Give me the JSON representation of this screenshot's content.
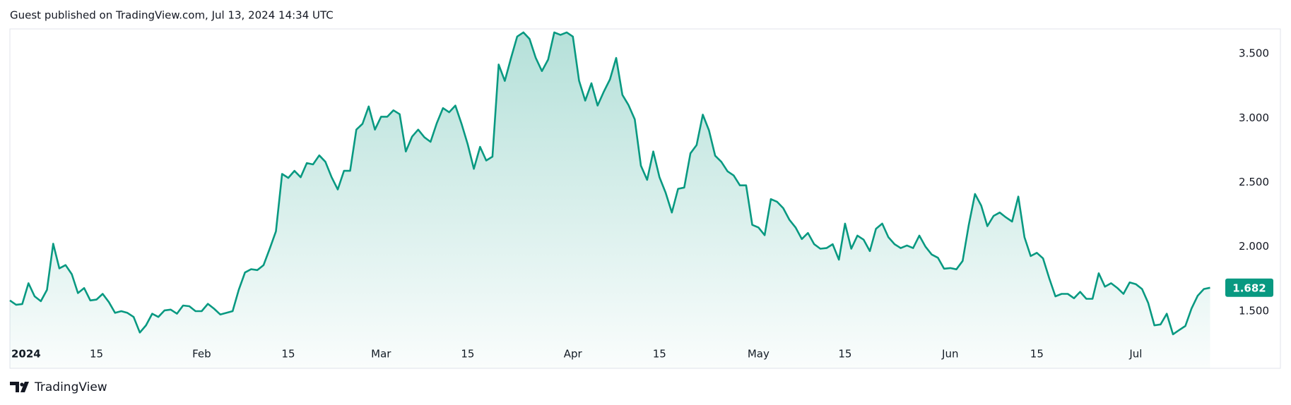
{
  "header": {
    "text": "Guest published on TradingView.com, Jul 13, 2024 14:34 UTC"
  },
  "footer": {
    "brand": "TradingView"
  },
  "chart_data": {
    "type": "area",
    "series": [
      {
        "color": "#089981",
        "values": [
          1.583,
          1.55,
          1.555,
          1.717,
          1.615,
          1.577,
          1.666,
          2.024,
          1.832,
          1.858,
          1.787,
          1.64,
          1.679,
          1.583,
          1.59,
          1.634,
          1.57,
          1.487,
          1.5,
          1.487,
          1.455,
          1.334,
          1.39,
          1.48,
          1.455,
          1.506,
          1.512,
          1.48,
          1.544,
          1.538,
          1.5,
          1.5,
          1.557,
          1.519,
          1.474,
          1.487,
          1.5,
          1.666,
          1.8,
          1.826,
          1.819,
          1.858,
          1.985,
          2.12,
          2.566,
          2.535,
          2.59,
          2.54,
          2.65,
          2.64,
          2.71,
          2.66,
          2.54,
          2.445,
          2.59,
          2.59,
          2.91,
          2.955,
          3.09,
          2.91,
          3.01,
          3.01,
          3.06,
          3.03,
          2.74,
          2.855,
          2.91,
          2.85,
          2.815,
          2.96,
          3.077,
          3.045,
          3.097,
          2.956,
          2.796,
          2.605,
          2.776,
          2.67,
          2.7,
          3.416,
          3.288,
          3.467,
          3.633,
          3.665,
          3.614,
          3.467,
          3.365,
          3.454,
          3.665,
          3.646,
          3.665,
          3.633,
          3.29,
          3.135,
          3.27,
          3.097,
          3.205,
          3.3,
          3.467,
          3.18,
          3.1,
          2.99,
          2.63,
          2.52,
          2.74,
          2.54,
          2.42,
          2.266,
          2.45,
          2.46,
          2.726,
          2.79,
          3.026,
          2.905,
          2.707,
          2.66,
          2.586,
          2.554,
          2.477,
          2.477,
          2.17,
          2.15,
          2.09,
          2.37,
          2.35,
          2.3,
          2.21,
          2.15,
          2.06,
          2.107,
          2.02,
          1.985,
          1.99,
          2.02,
          1.9,
          2.18,
          1.985,
          2.087,
          2.055,
          1.966,
          2.14,
          2.18,
          2.075,
          2.02,
          1.99,
          2.01,
          1.99,
          2.087,
          2.0,
          1.94,
          1.915,
          1.83,
          1.835,
          1.825,
          1.89,
          2.17,
          2.41,
          2.32,
          2.16,
          2.24,
          2.266,
          2.228,
          2.196,
          2.39,
          2.075,
          1.928,
          1.953,
          1.91,
          1.755,
          1.615,
          1.634,
          1.634,
          1.6,
          1.65,
          1.596,
          1.596,
          1.794,
          1.69,
          1.717,
          1.68,
          1.634,
          1.723,
          1.71,
          1.672,
          1.564,
          1.39,
          1.397,
          1.48,
          1.32,
          1.353,
          1.385,
          1.52,
          1.62,
          1.672,
          1.682
        ]
      }
    ],
    "x": [
      "2024-01-01",
      "2024-01-02",
      "2024-01-03",
      "2024-01-04",
      "2024-01-05",
      "2024-01-06",
      "2024-01-07",
      "2024-01-08",
      "2024-01-09",
      "2024-01-10",
      "2024-01-11",
      "2024-01-12",
      "2024-01-13",
      "2024-01-14",
      "2024-01-15",
      "2024-01-16",
      "2024-01-17",
      "2024-01-18",
      "2024-01-19",
      "2024-01-20",
      "2024-01-21",
      "2024-01-22",
      "2024-01-23",
      "2024-01-24",
      "2024-01-25",
      "2024-01-26",
      "2024-01-27",
      "2024-01-28",
      "2024-01-29",
      "2024-01-30",
      "2024-01-31",
      "2024-02-01",
      "2024-02-02",
      "2024-02-03",
      "2024-02-04",
      "2024-02-05",
      "2024-02-06",
      "2024-02-07",
      "2024-02-08",
      "2024-02-09",
      "2024-02-10",
      "2024-02-11",
      "2024-02-12",
      "2024-02-13",
      "2024-02-14",
      "2024-02-15",
      "2024-02-16",
      "2024-02-17",
      "2024-02-18",
      "2024-02-19",
      "2024-02-20",
      "2024-02-21",
      "2024-02-22",
      "2024-02-23",
      "2024-02-24",
      "2024-02-25",
      "2024-02-26",
      "2024-02-27",
      "2024-02-28",
      "2024-02-29",
      "2024-03-01",
      "2024-03-02",
      "2024-03-03",
      "2024-03-04",
      "2024-03-05",
      "2024-03-06",
      "2024-03-07",
      "2024-03-08",
      "2024-03-09",
      "2024-03-10",
      "2024-03-11",
      "2024-03-12",
      "2024-03-13",
      "2024-03-14",
      "2024-03-15",
      "2024-03-16",
      "2024-03-17",
      "2024-03-18",
      "2024-03-19",
      "2024-03-20",
      "2024-03-21",
      "2024-03-22",
      "2024-03-23",
      "2024-03-24",
      "2024-03-25",
      "2024-03-26",
      "2024-03-27",
      "2024-03-28",
      "2024-03-29",
      "2024-03-30",
      "2024-03-31",
      "2024-04-01",
      "2024-04-02",
      "2024-04-03",
      "2024-04-04",
      "2024-04-05",
      "2024-04-06",
      "2024-04-07",
      "2024-04-08",
      "2024-04-09",
      "2024-04-10",
      "2024-04-11",
      "2024-04-12",
      "2024-04-13",
      "2024-04-14",
      "2024-04-15",
      "2024-04-16",
      "2024-04-17",
      "2024-04-18",
      "2024-04-19",
      "2024-04-20",
      "2024-04-21",
      "2024-04-22",
      "2024-04-23",
      "2024-04-24",
      "2024-04-25",
      "2024-04-26",
      "2024-04-27",
      "2024-04-28",
      "2024-04-29",
      "2024-04-30",
      "2024-05-01",
      "2024-05-02",
      "2024-05-03",
      "2024-05-04",
      "2024-05-05",
      "2024-05-06",
      "2024-05-07",
      "2024-05-08",
      "2024-05-09",
      "2024-05-10",
      "2024-05-11",
      "2024-05-12",
      "2024-05-13",
      "2024-05-14",
      "2024-05-15",
      "2024-05-16",
      "2024-05-17",
      "2024-05-18",
      "2024-05-19",
      "2024-05-20",
      "2024-05-21",
      "2024-05-22",
      "2024-05-23",
      "2024-05-24",
      "2024-05-25",
      "2024-05-26",
      "2024-05-27",
      "2024-05-28",
      "2024-05-29",
      "2024-05-30",
      "2024-05-31",
      "2024-06-01",
      "2024-06-02",
      "2024-06-03",
      "2024-06-04",
      "2024-06-05",
      "2024-06-06",
      "2024-06-07",
      "2024-06-08",
      "2024-06-09",
      "2024-06-10",
      "2024-06-11",
      "2024-06-12",
      "2024-06-13",
      "2024-06-14",
      "2024-06-15",
      "2024-06-16",
      "2024-06-17",
      "2024-06-18",
      "2024-06-19",
      "2024-06-20",
      "2024-06-21",
      "2024-06-22",
      "2024-06-23",
      "2024-06-24",
      "2024-06-25",
      "2024-06-26",
      "2024-06-27",
      "2024-06-28",
      "2024-06-29",
      "2024-06-30",
      "2024-07-01",
      "2024-07-02",
      "2024-07-03",
      "2024-07-04",
      "2024-07-05",
      "2024-07-06",
      "2024-07-07",
      "2024-07-08",
      "2024-07-09",
      "2024-07-10",
      "2024-07-11",
      "2024-07-12",
      "2024-07-13"
    ],
    "xlim": [
      "2024-01-01",
      "2024-07-15"
    ],
    "xticks": [
      {
        "value": "2024-01-01",
        "label": "2024"
      },
      {
        "value": "2024-01-15",
        "label": "15"
      },
      {
        "value": "2024-02-01",
        "label": "Feb"
      },
      {
        "value": "2024-02-15",
        "label": "15"
      },
      {
        "value": "2024-03-01",
        "label": "Mar"
      },
      {
        "value": "2024-03-15",
        "label": "15"
      },
      {
        "value": "2024-04-01",
        "label": "Apr"
      },
      {
        "value": "2024-04-15",
        "label": "15"
      },
      {
        "value": "2024-05-01",
        "label": "May"
      },
      {
        "value": "2024-05-15",
        "label": "15"
      },
      {
        "value": "2024-06-01",
        "label": "Jun"
      },
      {
        "value": "2024-06-15",
        "label": "15"
      },
      {
        "value": "2024-07-01",
        "label": "Jul"
      }
    ],
    "ylim": [
      1.056,
      3.692
    ],
    "yticks": [
      {
        "value": 1.5,
        "label": "1.500"
      },
      {
        "value": 2,
        "label": "2.000"
      },
      {
        "value": 2.5,
        "label": "2.500"
      },
      {
        "value": 3,
        "label": "3.000"
      },
      {
        "value": 3.5,
        "label": "3.500"
      }
    ],
    "grid": false
  }
}
